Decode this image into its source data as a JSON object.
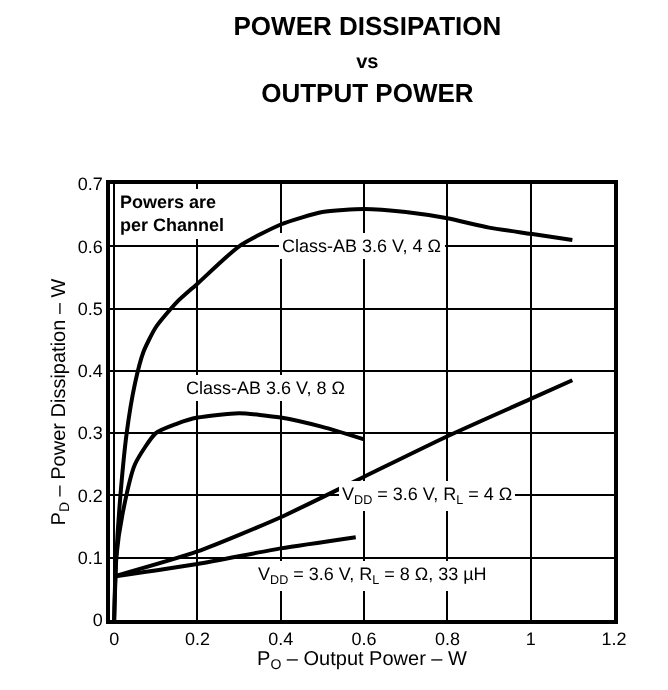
{
  "chart_data": {
    "type": "line",
    "title": "POWER DISSIPATION\nvs\nOUTPUT POWER",
    "xlabel": "P$_{O}$ – Output Power – W",
    "ylabel": "P$_{D}$ – Power Dissipation – W",
    "xlim": [
      -0.01,
      1.2
    ],
    "ylim": [
      0,
      0.7
    ],
    "xticks": [
      0,
      0.2,
      0.4,
      0.6,
      0.8,
      1,
      1.2
    ],
    "yticks": [
      0,
      0.1,
      0.2,
      0.3,
      0.4,
      0.5,
      0.6,
      0.7
    ],
    "grid": true,
    "legend": false,
    "marker": "none",
    "line_style": "solid",
    "series": [
      {
        "color": "#000000",
        "x": [
          0,
          0.005,
          0.015,
          0.03,
          0.05,
          0.07,
          0.1,
          0.15,
          0.2,
          0.3,
          0.4,
          0.5,
          0.6,
          0.7,
          0.8,
          0.9,
          1.0,
          1.1
        ],
        "values": [
          0,
          0.1,
          0.2,
          0.3,
          0.38,
          0.43,
          0.47,
          0.51,
          0.54,
          0.6,
          0.635,
          0.655,
          0.66,
          0.655,
          0.645,
          0.63,
          0.62,
          0.61
        ]
      },
      {
        "color": "#000000",
        "x": [
          0,
          0.005,
          0.02,
          0.05,
          0.1,
          0.15,
          0.2,
          0.3,
          0.4,
          0.5,
          0.6
        ],
        "values": [
          0,
          0.1,
          0.17,
          0.25,
          0.3,
          0.315,
          0.325,
          0.332,
          0.325,
          0.31,
          0.29
        ]
      },
      {
        "color": "#000000",
        "x": [
          0,
          0.2,
          0.4,
          0.6,
          0.8,
          1.0,
          1.1
        ],
        "values": [
          0.07,
          0.11,
          0.165,
          0.23,
          0.295,
          0.355,
          0.385
        ]
      },
      {
        "color": "#000000",
        "x": [
          0,
          0.2,
          0.4,
          0.58
        ],
        "values": [
          0.07,
          0.09,
          0.115,
          0.133
        ]
      }
    ],
    "annotations": [
      "Powers are\nper Channel",
      "Class-AB 3.6 V, 4 Ω",
      "Class-AB 3.6 V, 8 Ω",
      "V$_{DD}$ = 3.6 V, R$_{L}$ = 4 Ω",
      "V$_{DD}$ = 3.6 V, R$_{L}$ = 8 Ω, 33 µH"
    ]
  }
}
